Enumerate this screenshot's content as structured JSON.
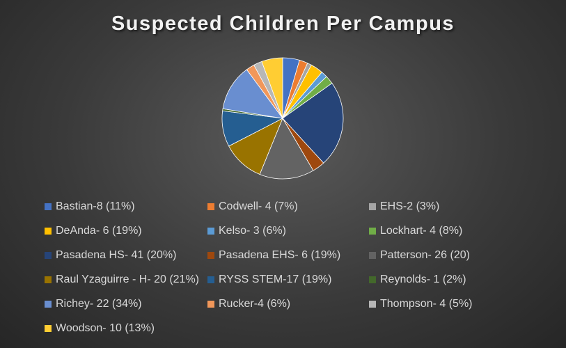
{
  "chart_data": {
    "type": "pie",
    "title": "Suspected Children Per Campus",
    "slices": [
      {
        "label": "Bastian-8 (11%)",
        "value": 8,
        "color": "#4472c4"
      },
      {
        "label": "Codwell- 4 (7%)",
        "value": 4,
        "color": "#ed7d31"
      },
      {
        "label": "EHS-2 (3%)",
        "value": 2,
        "color": "#a5a5a5"
      },
      {
        "label": "DeAnda- 6 (19%)",
        "value": 6,
        "color": "#ffc000"
      },
      {
        "label": "Kelso- 3 (6%)",
        "value": 3,
        "color": "#5b9bd5"
      },
      {
        "label": "Lockhart- 4 (8%)",
        "value": 4,
        "color": "#70ad47"
      },
      {
        "label": "Pasadena HS- 41 (20%)",
        "value": 41,
        "color": "#264478"
      },
      {
        "label": "Pasadena EHS- 6 (19%)",
        "value": 6,
        "color": "#9e480e"
      },
      {
        "label": "Patterson- 26 (20)",
        "value": 26,
        "color": "#636363"
      },
      {
        "label": "Raul Yzaguirre - H- 20 (21%)",
        "value": 20,
        "color": "#997300"
      },
      {
        "label": "RYSS STEM-17 (19%)",
        "value": 17,
        "color": "#255e91"
      },
      {
        "label": "Reynolds- 1 (2%)",
        "value": 1,
        "color": "#43682b"
      },
      {
        "label": "Richey- 22 (34%)",
        "value": 22,
        "color": "#698ed0"
      },
      {
        "label": "Rucker-4 (6%)",
        "value": 4,
        "color": "#f1975a"
      },
      {
        "label": "Thompson- 4 (5%)",
        "value": 4,
        "color": "#b7b7b7"
      },
      {
        "label": "Woodson- 10 (13%)",
        "value": 10,
        "color": "#ffcd33"
      }
    ],
    "legend_position": "bottom"
  }
}
